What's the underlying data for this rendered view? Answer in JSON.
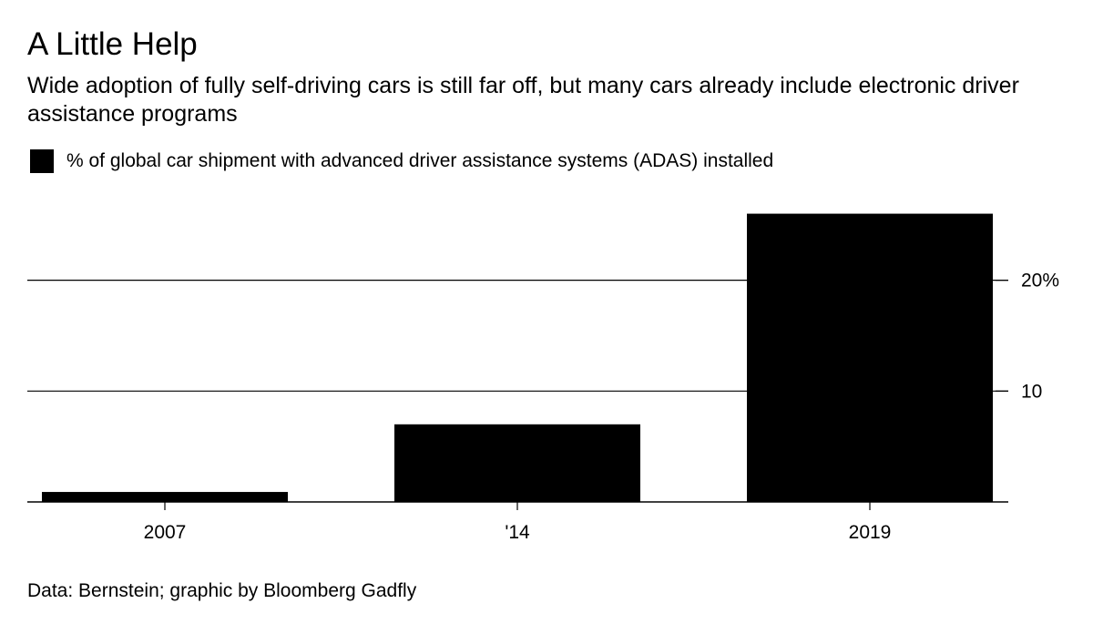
{
  "chart_data": {
    "type": "bar",
    "title": "A Little Help",
    "subtitle": "Wide adoption of fully self-driving cars is still far off, but many cars already include electronic driver assistance programs",
    "categories": [
      "2007",
      "'14",
      "2019"
    ],
    "series": [
      {
        "name": "% of global car shipment with advanced driver assistance systems (ADAS) installed",
        "values": [
          0.9,
          7.0,
          26.0
        ],
        "color": "#000000"
      }
    ],
    "y_axis": {
      "position": "right",
      "ticks": [
        10,
        20
      ],
      "tick_labels": [
        "10",
        "20%"
      ],
      "ylim": [
        0,
        26.5
      ]
    },
    "xlabel": "",
    "ylabel": "",
    "grid": "horizontal",
    "legend_position": "top-left",
    "source": "Data: Bernstein; graphic by Bloomberg Gadfly"
  }
}
